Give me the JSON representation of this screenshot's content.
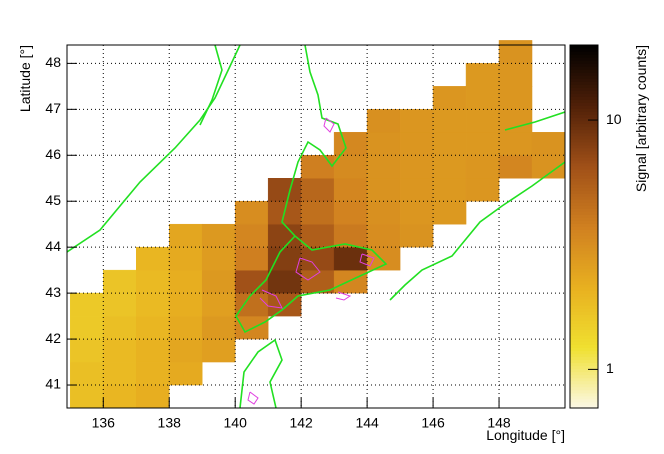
{
  "chart_data": {
    "type": "heatmap",
    "xlabel": "Longitude [°]",
    "ylabel": "Latitude [°]",
    "zlabel": "Signal [arbitrary counts]",
    "xlim": [
      134.9,
      150
    ],
    "ylim": [
      40.5,
      48.4
    ],
    "xticks": [
      136,
      138,
      140,
      142,
      144,
      146,
      148
    ],
    "yticks": [
      41,
      42,
      43,
      44,
      45,
      46,
      47,
      48
    ],
    "zlim": [
      0.7,
      20
    ],
    "zticks": [
      1,
      10
    ],
    "zlog": true,
    "grid": true,
    "palette": [
      "#fbf8e8",
      "#f0e030",
      "#e8b020",
      "#d08020",
      "#a05018",
      "#502008",
      "#000000"
    ],
    "x_bins": [
      135,
      136,
      137,
      138,
      139,
      140,
      141,
      142,
      143,
      144,
      145,
      146,
      147,
      148,
      149,
      150
    ],
    "y_bins": [
      40.5,
      41,
      41.5,
      42,
      42.5,
      43,
      43.5,
      44,
      44.5,
      45,
      45.5,
      46,
      46.5,
      47,
      47.5,
      48,
      48.5
    ],
    "z": [
      [
        1.8,
        2.0,
        2.2,
        null,
        null,
        null,
        null,
        null,
        null,
        null,
        null,
        null,
        null,
        null,
        null
      ],
      [
        1.8,
        1.9,
        2.1,
        2.3,
        null,
        null,
        null,
        null,
        null,
        null,
        null,
        null,
        null,
        null,
        null
      ],
      [
        1.7,
        1.9,
        2.1,
        2.4,
        2.6,
        null,
        null,
        null,
        null,
        null,
        null,
        null,
        null,
        null,
        null
      ],
      [
        1.6,
        1.8,
        2.0,
        2.3,
        2.8,
        3.5,
        null,
        null,
        null,
        null,
        null,
        null,
        null,
        null,
        null
      ],
      [
        1.6,
        1.7,
        1.9,
        2.2,
        2.6,
        4.5,
        6.0,
        null,
        null,
        null,
        null,
        null,
        null,
        null,
        null
      ],
      [
        null,
        1.7,
        1.9,
        2.2,
        2.8,
        6.5,
        9.0,
        5.5,
        3.5,
        null,
        null,
        null,
        null,
        null,
        null
      ],
      [
        null,
        null,
        2.0,
        2.3,
        2.7,
        3.8,
        8.0,
        7.0,
        9.5,
        3.2,
        null,
        null,
        null,
        null,
        null
      ],
      [
        null,
        null,
        null,
        2.4,
        2.8,
        3.5,
        7.5,
        5.5,
        4.0,
        3.2,
        3.0,
        null,
        null,
        null,
        null
      ],
      [
        null,
        null,
        null,
        null,
        null,
        3.2,
        6.0,
        4.5,
        3.6,
        3.1,
        2.9,
        2.8,
        null,
        null,
        null
      ],
      [
        null,
        null,
        null,
        null,
        null,
        null,
        7.0,
        5.0,
        3.5,
        3.0,
        2.9,
        2.8,
        2.9,
        null,
        null
      ],
      [
        null,
        null,
        null,
        null,
        null,
        null,
        null,
        3.8,
        3.3,
        3.0,
        2.9,
        2.8,
        2.9,
        3.5,
        3.0
      ],
      [
        null,
        null,
        null,
        null,
        null,
        null,
        null,
        null,
        3.4,
        3.0,
        2.9,
        2.8,
        2.8,
        2.9,
        3.0
      ],
      [
        null,
        null,
        null,
        null,
        null,
        null,
        null,
        null,
        null,
        3.1,
        2.9,
        2.8,
        2.8,
        2.9,
        null
      ],
      [
        null,
        null,
        null,
        null,
        null,
        null,
        null,
        null,
        null,
        null,
        null,
        2.9,
        2.8,
        2.9,
        null
      ],
      [
        null,
        null,
        null,
        null,
        null,
        null,
        null,
        null,
        null,
        null,
        null,
        null,
        2.8,
        2.9,
        null
      ],
      [
        null,
        null,
        null,
        null,
        null,
        null,
        null,
        null,
        null,
        null,
        null,
        null,
        null,
        3.0,
        null
      ]
    ]
  }
}
